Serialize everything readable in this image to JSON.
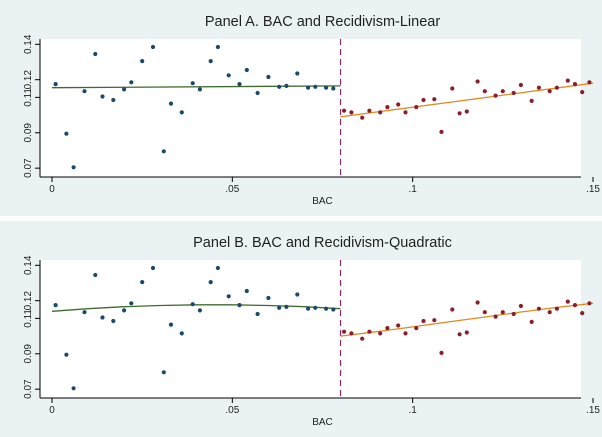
{
  "colors": {
    "background": "#eaf2f3",
    "plot_background": "#ffffff",
    "left_points": "#1a4a6b",
    "right_points": "#8b1d2c",
    "left_fit": "#3f6b2f",
    "right_fit": "#e08a1e",
    "cutoff_line": "#8b2a6f"
  },
  "chart_data": [
    {
      "type": "scatter",
      "title": "Panel A. BAC and Recidivism-Linear",
      "xlabel": "BAC",
      "ylabel": "",
      "xlim": [
        0,
        0.15
      ],
      "ylim": [
        0.065,
        0.143
      ],
      "xticks": [
        0,
        0.05,
        0.1,
        0.15
      ],
      "xtick_labels": [
        "0",
        ".05",
        ".1",
        ".15"
      ],
      "yticks": [
        0.07,
        0.09,
        0.11,
        0.12,
        0.14
      ],
      "ytick_labels": [
        "0.07",
        "0.09",
        "0.11",
        "0.12",
        "0.14"
      ],
      "cutoff": 0.08,
      "grid": false,
      "series": [
        {
          "points": [
            [
              0.001,
              0.1175
            ],
            [
              0.004,
              0.0895
            ],
            [
              0.006,
              0.0705
            ],
            [
              0.009,
              0.1135
            ],
            [
              0.012,
              0.1345
            ],
            [
              0.014,
              0.1105
            ],
            [
              0.017,
              0.1085
            ],
            [
              0.02,
              0.1145
            ],
            [
              0.022,
              0.1185
            ],
            [
              0.025,
              0.1305
            ],
            [
              0.028,
              0.1385
            ],
            [
              0.031,
              0.0795
            ],
            [
              0.033,
              0.1065
            ],
            [
              0.036,
              0.1015
            ],
            [
              0.039,
              0.118
            ],
            [
              0.041,
              0.1145
            ],
            [
              0.044,
              0.1305
            ],
            [
              0.046,
              0.1385
            ],
            [
              0.049,
              0.1225
            ],
            [
              0.052,
              0.1175
            ],
            [
              0.054,
              0.1255
            ],
            [
              0.057,
              0.1125
            ],
            [
              0.06,
              0.1215
            ],
            [
              0.063,
              0.116
            ],
            [
              0.065,
              0.1165
            ],
            [
              0.068,
              0.1235
            ],
            [
              0.071,
              0.1155
            ],
            [
              0.073,
              0.116
            ],
            [
              0.076,
              0.1155
            ],
            [
              0.078,
              0.115
            ]
          ],
          "fit": [
            [
              0.0,
              0.1155
            ],
            [
              0.08,
              0.1165
            ]
          ]
        },
        {
          "points": [
            [
              0.081,
              0.1025
            ],
            [
              0.083,
              0.1015
            ],
            [
              0.086,
              0.0985
            ],
            [
              0.088,
              0.1025
            ],
            [
              0.091,
              0.1015
            ],
            [
              0.093,
              0.1045
            ],
            [
              0.096,
              0.106
            ],
            [
              0.098,
              0.1015
            ],
            [
              0.101,
              0.1045
            ],
            [
              0.103,
              0.1085
            ],
            [
              0.106,
              0.109
            ],
            [
              0.108,
              0.0905
            ],
            [
              0.111,
              0.115
            ],
            [
              0.113,
              0.101
            ],
            [
              0.115,
              0.102
            ],
            [
              0.118,
              0.119
            ],
            [
              0.12,
              0.1135
            ],
            [
              0.123,
              0.111
            ],
            [
              0.125,
              0.1135
            ],
            [
              0.128,
              0.1125
            ],
            [
              0.13,
              0.117
            ],
            [
              0.133,
              0.108
            ],
            [
              0.135,
              0.1155
            ],
            [
              0.138,
              0.1135
            ],
            [
              0.14,
              0.1155
            ],
            [
              0.143,
              0.1195
            ],
            [
              0.145,
              0.1175
            ],
            [
              0.147,
              0.113
            ],
            [
              0.149,
              0.1185
            ]
          ],
          "fit": [
            [
              0.08,
              0.099
            ],
            [
              0.15,
              0.118
            ]
          ]
        }
      ]
    },
    {
      "type": "scatter",
      "title": "Panel B. BAC and Recidivism-Quadratic",
      "xlabel": "BAC",
      "ylabel": "",
      "xlim": [
        0,
        0.15
      ],
      "ylim": [
        0.065,
        0.143
      ],
      "xticks": [
        0,
        0.05,
        0.1,
        0.15
      ],
      "xtick_labels": [
        "0",
        ".05",
        ".1",
        ".15"
      ],
      "yticks": [
        0.07,
        0.09,
        0.11,
        0.12,
        0.14
      ],
      "ytick_labels": [
        "0.07",
        "0.09",
        "0.11",
        "0.12",
        "0.14"
      ],
      "cutoff": 0.08,
      "grid": false,
      "series": [
        {
          "points": [
            [
              0.001,
              0.1175
            ],
            [
              0.004,
              0.0895
            ],
            [
              0.006,
              0.0705
            ],
            [
              0.009,
              0.1135
            ],
            [
              0.012,
              0.1345
            ],
            [
              0.014,
              0.1105
            ],
            [
              0.017,
              0.1085
            ],
            [
              0.02,
              0.1145
            ],
            [
              0.022,
              0.1185
            ],
            [
              0.025,
              0.1305
            ],
            [
              0.028,
              0.1385
            ],
            [
              0.031,
              0.0795
            ],
            [
              0.033,
              0.1065
            ],
            [
              0.036,
              0.1015
            ],
            [
              0.039,
              0.118
            ],
            [
              0.041,
              0.1145
            ],
            [
              0.044,
              0.1305
            ],
            [
              0.046,
              0.1385
            ],
            [
              0.049,
              0.1225
            ],
            [
              0.052,
              0.1175
            ],
            [
              0.054,
              0.1255
            ],
            [
              0.057,
              0.1125
            ],
            [
              0.06,
              0.1215
            ],
            [
              0.063,
              0.116
            ],
            [
              0.065,
              0.1165
            ],
            [
              0.068,
              0.1235
            ],
            [
              0.071,
              0.1155
            ],
            [
              0.073,
              0.116
            ],
            [
              0.076,
              0.1155
            ],
            [
              0.078,
              0.115
            ]
          ],
          "fit": [
            [
              0.0,
              0.114
            ],
            [
              0.01,
              0.1155
            ],
            [
              0.02,
              0.1166
            ],
            [
              0.03,
              0.1173
            ],
            [
              0.04,
              0.1177
            ],
            [
              0.05,
              0.1177
            ],
            [
              0.06,
              0.1173
            ],
            [
              0.07,
              0.1166
            ],
            [
              0.08,
              0.1155
            ]
          ]
        },
        {
          "points": [
            [
              0.081,
              0.1025
            ],
            [
              0.083,
              0.1015
            ],
            [
              0.086,
              0.0985
            ],
            [
              0.088,
              0.1025
            ],
            [
              0.091,
              0.1015
            ],
            [
              0.093,
              0.1045
            ],
            [
              0.096,
              0.106
            ],
            [
              0.098,
              0.1015
            ],
            [
              0.101,
              0.1045
            ],
            [
              0.103,
              0.1085
            ],
            [
              0.106,
              0.109
            ],
            [
              0.108,
              0.0905
            ],
            [
              0.111,
              0.115
            ],
            [
              0.113,
              0.101
            ],
            [
              0.115,
              0.102
            ],
            [
              0.118,
              0.119
            ],
            [
              0.12,
              0.1135
            ],
            [
              0.123,
              0.111
            ],
            [
              0.125,
              0.1135
            ],
            [
              0.128,
              0.1125
            ],
            [
              0.13,
              0.117
            ],
            [
              0.133,
              0.108
            ],
            [
              0.135,
              0.1155
            ],
            [
              0.138,
              0.1135
            ],
            [
              0.14,
              0.1155
            ],
            [
              0.143,
              0.1195
            ],
            [
              0.145,
              0.1175
            ],
            [
              0.147,
              0.113
            ],
            [
              0.149,
              0.1185
            ]
          ],
          "fit": [
            [
              0.08,
              0.1
            ],
            [
              0.09,
              0.1025
            ],
            [
              0.1,
              0.1052
            ],
            [
              0.11,
              0.108
            ],
            [
              0.12,
              0.1108
            ],
            [
              0.13,
              0.1136
            ],
            [
              0.14,
              0.1162
            ],
            [
              0.15,
              0.1185
            ]
          ]
        }
      ]
    }
  ]
}
